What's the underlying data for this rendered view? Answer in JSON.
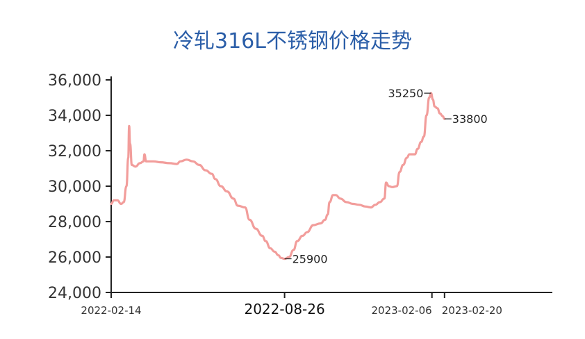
{
  "chart_data": {
    "type": "line",
    "title": "冷轧316L不锈钢价格走势",
    "xlabel": "",
    "ylabel": "",
    "ylim": [
      24000,
      36000
    ],
    "yticks": [
      "24,000",
      "26,000",
      "28,000",
      "30,000",
      "32,000",
      "34,000",
      "36,000"
    ],
    "ytick_values": [
      24000,
      26000,
      28000,
      30000,
      32000,
      34000,
      36000
    ],
    "xrange": [
      "2022-02-14",
      "2023-06-20"
    ],
    "xticks": [
      {
        "date": "2022-02-14",
        "label": "2022-02-14"
      },
      {
        "date": "2022-08-26",
        "label": "2022-08-26",
        "emphasis": true
      },
      {
        "date": "2023-02-06",
        "label": "2023-02-06"
      },
      {
        "date": "2023-02-20",
        "label": "2023-02-20"
      }
    ],
    "grid": false,
    "line_color": "#f29d9b",
    "series": [
      {
        "points": [
          [
            "2022-02-14",
            29000
          ],
          [
            "2022-02-17",
            29200
          ],
          [
            "2022-02-21",
            29200
          ],
          [
            "2022-02-25",
            29000
          ],
          [
            "2022-02-28",
            29100
          ],
          [
            "2022-03-03",
            30000
          ],
          [
            "2022-03-05",
            31600
          ],
          [
            "2022-03-06",
            33400
          ],
          [
            "2022-03-07",
            32400
          ],
          [
            "2022-03-09",
            31200
          ],
          [
            "2022-03-13",
            31100
          ],
          [
            "2022-03-18",
            31300
          ],
          [
            "2022-03-22",
            31400
          ],
          [
            "2022-03-23",
            31800
          ],
          [
            "2022-03-25",
            31400
          ],
          [
            "2022-04-02",
            31400
          ],
          [
            "2022-04-10",
            31350
          ],
          [
            "2022-04-20",
            31300
          ],
          [
            "2022-04-28",
            31250
          ],
          [
            "2022-05-02",
            31400
          ],
          [
            "2022-05-09",
            31500
          ],
          [
            "2022-05-16",
            31400
          ],
          [
            "2022-05-23",
            31200
          ],
          [
            "2022-05-30",
            30900
          ],
          [
            "2022-06-06",
            30700
          ],
          [
            "2022-06-10",
            30400
          ],
          [
            "2022-06-16",
            30000
          ],
          [
            "2022-06-23",
            29700
          ],
          [
            "2022-06-30",
            29300
          ],
          [
            "2022-07-05",
            28900
          ],
          [
            "2022-07-13",
            28800
          ],
          [
            "2022-07-18",
            28100
          ],
          [
            "2022-07-25",
            27600
          ],
          [
            "2022-08-01",
            27200
          ],
          [
            "2022-08-05",
            26900
          ],
          [
            "2022-08-10",
            26500
          ],
          [
            "2022-08-15",
            26300
          ],
          [
            "2022-08-19",
            26100
          ],
          [
            "2022-08-22",
            25950
          ],
          [
            "2022-08-26",
            25900
          ],
          [
            "2022-08-31",
            26000
          ],
          [
            "2022-09-05",
            26400
          ],
          [
            "2022-09-09",
            26900
          ],
          [
            "2022-09-15",
            27200
          ],
          [
            "2022-09-20",
            27400
          ],
          [
            "2022-09-27",
            27800
          ],
          [
            "2022-10-05",
            27900
          ],
          [
            "2022-10-10",
            28100
          ],
          [
            "2022-10-13",
            28400
          ],
          [
            "2022-10-15",
            29100
          ],
          [
            "2022-10-19",
            29500
          ],
          [
            "2022-10-22",
            29500
          ],
          [
            "2022-10-27",
            29300
          ],
          [
            "2022-11-03",
            29100
          ],
          [
            "2022-11-10",
            29000
          ],
          [
            "2022-11-17",
            28950
          ],
          [
            "2022-11-24",
            28850
          ],
          [
            "2022-11-30",
            28800
          ],
          [
            "2022-12-05",
            28950
          ],
          [
            "2022-12-10",
            29100
          ],
          [
            "2022-12-15",
            29300
          ],
          [
            "2022-12-17",
            30200
          ],
          [
            "2022-12-20",
            30000
          ],
          [
            "2022-12-24",
            29950
          ],
          [
            "2022-12-29",
            30000
          ],
          [
            "2023-01-01",
            30800
          ],
          [
            "2023-01-05",
            31200
          ],
          [
            "2023-01-09",
            31600
          ],
          [
            "2023-01-12",
            31800
          ],
          [
            "2023-01-18",
            31800
          ],
          [
            "2023-01-21",
            32100
          ],
          [
            "2023-01-25",
            32500
          ],
          [
            "2023-01-28",
            32800
          ],
          [
            "2023-01-31",
            34000
          ],
          [
            "2023-02-03",
            35000
          ],
          [
            "2023-02-05",
            35250
          ],
          [
            "2023-02-07",
            34900
          ],
          [
            "2023-02-09",
            34500
          ],
          [
            "2023-02-12",
            34400
          ],
          [
            "2023-02-15",
            34100
          ],
          [
            "2023-02-18",
            33950
          ],
          [
            "2023-02-20",
            33800
          ]
        ]
      }
    ],
    "annotations": [
      {
        "date": "2022-08-26",
        "value": 25900,
        "label": "25900",
        "side": "right"
      },
      {
        "date": "2023-02-05",
        "value": 35250,
        "label": "35250",
        "side": "left"
      },
      {
        "date": "2023-02-20",
        "value": 33800,
        "label": "33800",
        "side": "right"
      }
    ]
  }
}
